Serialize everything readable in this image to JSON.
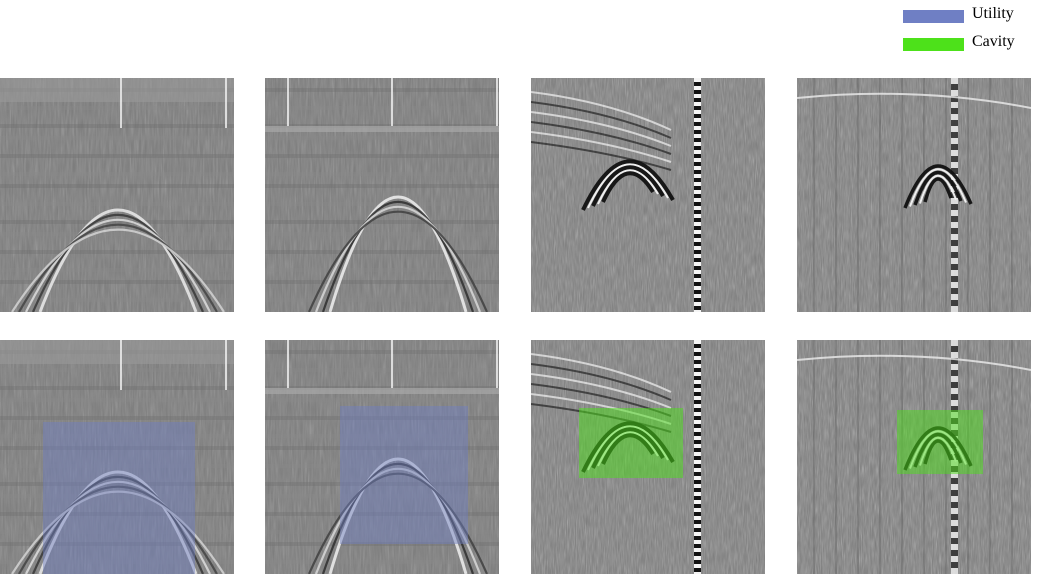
{
  "legend": {
    "utility": {
      "label": "Utility",
      "color": "#6f7fc4"
    },
    "cavity": {
      "label": "Cavity",
      "color": "#4de11a"
    }
  },
  "panels": {
    "top": [
      {
        "name": "gpr-scan-utility-1",
        "pattern": "utility-1"
      },
      {
        "name": "gpr-scan-utility-2",
        "pattern": "utility-2"
      },
      {
        "name": "gpr-scan-cavity-1",
        "pattern": "cavity-1"
      },
      {
        "name": "gpr-scan-cavity-2",
        "pattern": "cavity-2"
      }
    ],
    "bottom": [
      {
        "name": "gpr-scan-utility-1-labeled",
        "pattern": "utility-1",
        "class": "utility"
      },
      {
        "name": "gpr-scan-utility-2-labeled",
        "pattern": "utility-2",
        "class": "utility"
      },
      {
        "name": "gpr-scan-cavity-1-labeled",
        "pattern": "cavity-1",
        "class": "cavity"
      },
      {
        "name": "gpr-scan-cavity-2-labeled",
        "pattern": "cavity-2",
        "class": "cavity"
      }
    ]
  }
}
